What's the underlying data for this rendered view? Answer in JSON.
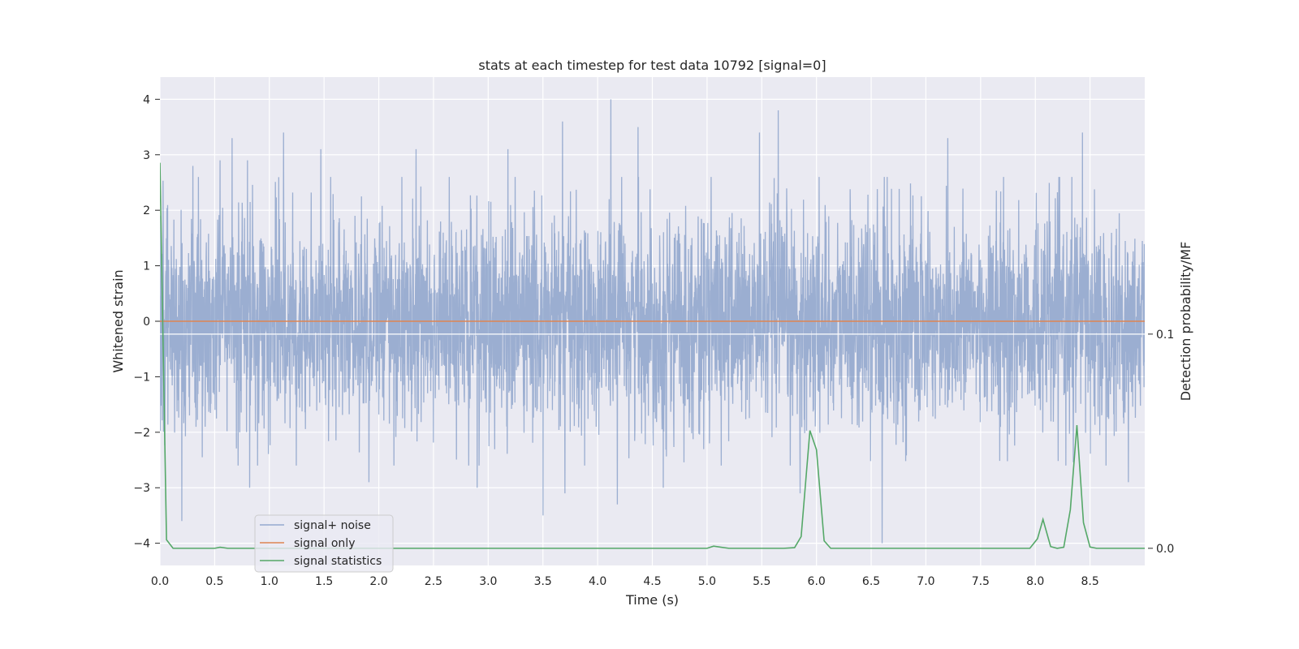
{
  "chart_data": {
    "type": "line",
    "title": "stats at each timestep for test data 10792 [signal=0]",
    "xlabel": "Time (s)",
    "ylabel": "Whitened strain",
    "ylabel_right": "Detection probability/MF",
    "xlim": [
      0.0,
      9.0
    ],
    "ylim": [
      -4.4,
      4.4
    ],
    "ylim_right": [
      -0.008,
      0.22
    ],
    "x_ticks": [
      0.0,
      0.5,
      1.0,
      1.5,
      2.0,
      2.5,
      3.0,
      3.5,
      4.0,
      4.5,
      5.0,
      5.5,
      6.0,
      6.5,
      7.0,
      7.5,
      8.0,
      8.5
    ],
    "x_tick_labels": [
      "0.0",
      "0.5",
      "1.0",
      "1.5",
      "2.0",
      "2.5",
      "3.0",
      "3.5",
      "4.0",
      "4.5",
      "5.0",
      "5.5",
      "6.0",
      "6.5",
      "7.0",
      "7.5",
      "8.0",
      "8.5"
    ],
    "y_ticks": [
      -4,
      -3,
      -2,
      -1,
      0,
      1,
      2,
      3,
      4
    ],
    "y_tick_labels": [
      "−4",
      "−3",
      "−2",
      "−1",
      "0",
      "1",
      "2",
      "3",
      "4"
    ],
    "y_right_ticks": [
      0.0,
      0.1
    ],
    "y_right_tick_labels": [
      "0.0",
      "0.1"
    ],
    "grid": true,
    "legend_position": "lower-left",
    "colors": {
      "background": "#eaeaf2",
      "grid": "#ffffff",
      "noise": "#4c72b0",
      "signal": "#dd8452",
      "stats": "#55a868"
    },
    "series": [
      {
        "name": "signal+ noise",
        "axis": "left",
        "description_values": "dense noise, approx range -3.6 to 4.0, typical band -2.5 to 2.5",
        "peaks_positive": [
          [
            0.2,
            3.3
          ],
          [
            0.3,
            2.8
          ],
          [
            0.55,
            2.9
          ],
          [
            0.66,
            3.3
          ],
          [
            0.8,
            2.9
          ],
          [
            1.13,
            3.4
          ],
          [
            1.47,
            3.1
          ],
          [
            2.34,
            3.1
          ],
          [
            3.18,
            3.1
          ],
          [
            3.68,
            3.6
          ],
          [
            4.12,
            4.0
          ],
          [
            4.37,
            3.5
          ],
          [
            5.48,
            3.4
          ],
          [
            5.65,
            3.8
          ],
          [
            7.2,
            3.3
          ],
          [
            8.43,
            3.4
          ],
          [
            8.85,
            3.4
          ]
        ],
        "peaks_negative": [
          [
            0.2,
            -3.6
          ],
          [
            0.82,
            -3.0
          ],
          [
            1.91,
            -2.9
          ],
          [
            2.9,
            -3.0
          ],
          [
            3.5,
            -3.5
          ],
          [
            3.7,
            -3.1
          ],
          [
            4.18,
            -3.3
          ],
          [
            4.6,
            -3.0
          ],
          [
            5.85,
            -3.1
          ],
          [
            6.6,
            -4.0
          ],
          [
            8.85,
            -2.9
          ]
        ]
      },
      {
        "name": "signal only",
        "axis": "left",
        "x": [
          0.0,
          9.0
        ],
        "y": [
          0.0,
          0.0
        ]
      },
      {
        "name": "signal statistics",
        "axis": "right",
        "x": [
          0.0,
          0.06,
          0.12,
          0.5,
          0.55,
          0.62,
          1.0,
          5.0,
          5.06,
          5.2,
          5.7,
          5.8,
          5.86,
          5.94,
          6.0,
          6.07,
          6.13,
          7.9,
          7.95,
          8.02,
          8.07,
          8.14,
          8.2,
          8.26,
          8.32,
          8.38,
          8.44,
          8.5,
          8.56,
          9.0
        ],
        "y": [
          0.18,
          0.004,
          0.0,
          0.0,
          0.0005,
          0.0,
          0.0,
          0.0,
          0.001,
          0.0,
          0.0,
          0.0003,
          0.0055,
          0.055,
          0.046,
          0.0035,
          0.0,
          0.0,
          0.0,
          0.0045,
          0.0135,
          0.0008,
          0.0,
          0.0005,
          0.018,
          0.0575,
          0.012,
          0.0006,
          0.0,
          0.0
        ]
      }
    ]
  }
}
